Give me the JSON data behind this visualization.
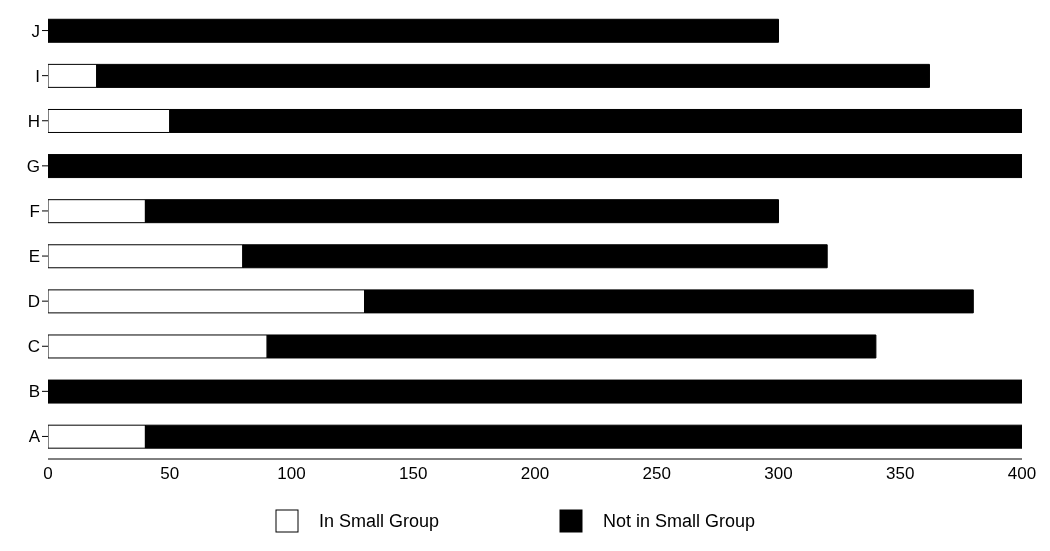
{
  "chart_data": {
    "type": "bar",
    "orientation": "horizontal",
    "stacked": true,
    "categories": [
      "J",
      "I",
      "H",
      "G",
      "F",
      "E",
      "D",
      "C",
      "B",
      "A"
    ],
    "series": [
      {
        "name": "In Small Group",
        "color": "#ffffff",
        "values": [
          0,
          20,
          50,
          0,
          40,
          80,
          130,
          90,
          0,
          40
        ]
      },
      {
        "name": "Not in Small Group",
        "color": "#000000",
        "values": [
          300,
          342,
          350,
          400,
          260,
          240,
          250,
          250,
          400,
          360
        ]
      }
    ],
    "xlim": [
      0,
      400
    ],
    "xticks": [
      0,
      50,
      100,
      150,
      200,
      250,
      300,
      350,
      400
    ],
    "legend": "bottom"
  }
}
